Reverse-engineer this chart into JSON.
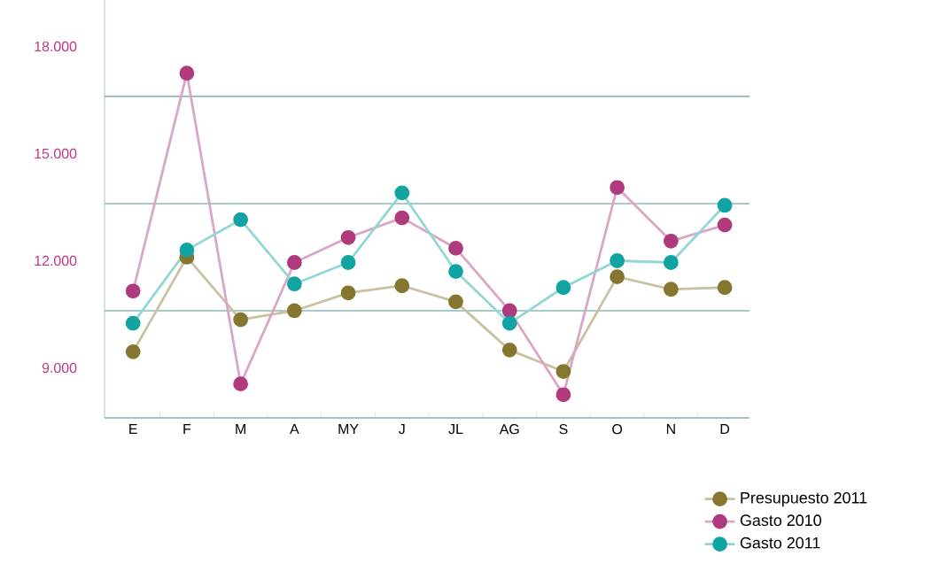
{
  "chart_data": {
    "type": "line",
    "categories": [
      "E",
      "F",
      "M",
      "A",
      "MY",
      "J",
      "JL",
      "AG",
      "S",
      "O",
      "N",
      "D"
    ],
    "series": [
      {
        "name": "Presupuesto 2011",
        "color": "#857630",
        "values": [
          9450,
          12100,
          10350,
          10600,
          11100,
          11300,
          10850,
          9500,
          8900,
          11550,
          11200,
          11250
        ]
      },
      {
        "name": "Gasto 2010",
        "color": "#b03a7e",
        "values": [
          11150,
          17250,
          8550,
          11950,
          12650,
          13200,
          12350,
          10600,
          8250,
          14050,
          12550,
          13000
        ]
      },
      {
        "name": "Gasto 2011",
        "color": "#12a3a3",
        "values": [
          10250,
          12300,
          13150,
          11350,
          11950,
          13900,
          11700,
          10250,
          11250,
          12000,
          11950,
          13550
        ]
      }
    ],
    "ylim": [
      7600,
      19300
    ],
    "yticks": [
      {
        "value": 7600,
        "label": null
      },
      {
        "value": 9000,
        "label": "9.000"
      },
      {
        "value": 10600,
        "label": null
      },
      {
        "value": 12000,
        "label": "12.000"
      },
      {
        "value": 13600,
        "label": null
      },
      {
        "value": 15000,
        "label": "15.000"
      },
      {
        "value": 16600,
        "label": null
      },
      {
        "value": 18000,
        "label": "18.000"
      }
    ],
    "grid": "y",
    "marker": "circle",
    "line_style": "solid",
    "legend": "bottom right"
  }
}
